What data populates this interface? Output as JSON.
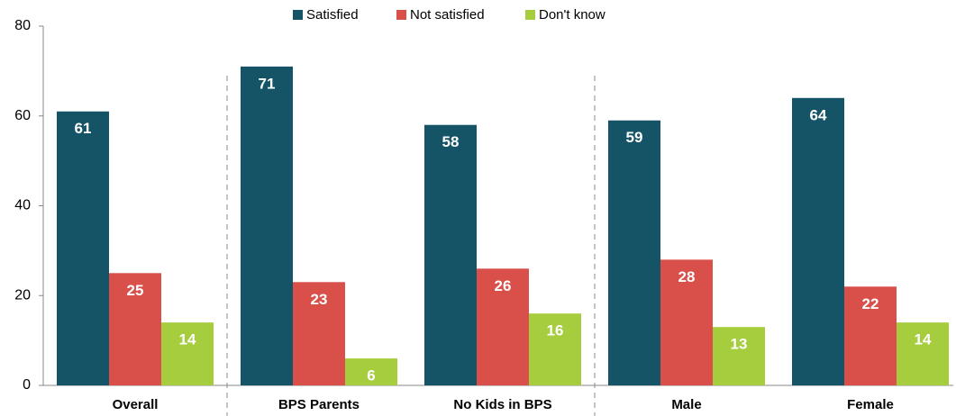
{
  "chart_data": {
    "type": "bar",
    "categories": [
      "Overall",
      "BPS Parents",
      "No Kids in BPS",
      "Male",
      "Female"
    ],
    "series": [
      {
        "name": "Satisfied",
        "color": "#155466",
        "values": [
          61,
          71,
          58,
          59,
          64
        ]
      },
      {
        "name": "Not satisfied",
        "color": "#d9504a",
        "values": [
          25,
          23,
          26,
          28,
          22
        ]
      },
      {
        "name": "Don't know",
        "color": "#a5cd3e",
        "values": [
          14,
          6,
          16,
          13,
          14
        ]
      }
    ],
    "ylim": [
      0,
      80
    ],
    "yticks": [
      0,
      20,
      40,
      60,
      80
    ],
    "grid": false,
    "legend": "top"
  }
}
